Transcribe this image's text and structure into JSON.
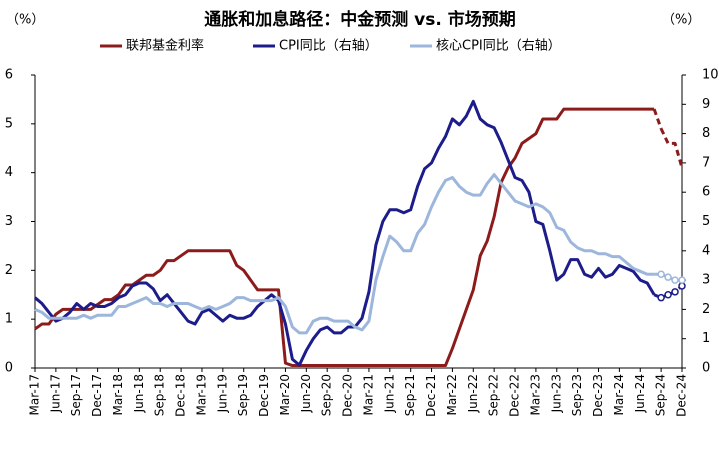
{
  "chart_data": {
    "type": "line",
    "title": "通胀和加息路径：中金预测 vs. 市场预期",
    "y_unit": "（%）",
    "y2_unit": "（%）",
    "categories": [
      "Mar-17",
      null,
      null,
      "Jun-17",
      null,
      null,
      "Sep-17",
      null,
      null,
      "Dec-17",
      null,
      null,
      "Mar-18",
      null,
      null,
      "Jun-18",
      null,
      null,
      "Sep-18",
      null,
      null,
      "Dec-18",
      null,
      null,
      "Mar-19",
      null,
      null,
      "Jun-19",
      null,
      null,
      "Sep-19",
      null,
      null,
      "Dec-19",
      null,
      null,
      "Mar-20",
      null,
      null,
      "Jun-20",
      null,
      null,
      "Sep-20",
      null,
      null,
      "Dec-20",
      null,
      null,
      "Mar-21",
      null,
      null,
      "Jun-21",
      null,
      null,
      "Sep-21",
      null,
      null,
      "Dec-21",
      null,
      null,
      "Mar-22",
      null,
      null,
      "Jun-22",
      null,
      null,
      "Sep-22",
      null,
      null,
      "Dec-22",
      null,
      null,
      "Mar-23",
      null,
      null,
      "Jun-23",
      null,
      null,
      "Sep-23",
      null,
      null,
      "Dec-23",
      null,
      null,
      "Mar-24",
      null,
      null,
      "Jun-24",
      null,
      null,
      "Sep-24",
      null,
      null,
      "Dec-24"
    ],
    "projection_start": "Sep-24",
    "series": [
      {
        "name": "联邦基金利率",
        "color": "#8c1c1c",
        "axis": "y",
        "values": [
          0.8,
          0.9,
          0.9,
          1.1,
          1.2,
          1.2,
          1.2,
          1.2,
          1.2,
          1.3,
          1.4,
          1.4,
          1.5,
          1.7,
          1.7,
          1.8,
          1.9,
          1.9,
          2.0,
          2.2,
          2.2,
          2.3,
          2.4,
          2.4,
          2.4,
          2.4,
          2.4,
          2.4,
          2.4,
          2.1,
          2.0,
          1.8,
          1.6,
          1.6,
          1.6,
          1.6,
          0.1,
          0.05,
          0.05,
          0.05,
          0.05,
          0.05,
          0.05,
          0.05,
          0.05,
          0.05,
          0.05,
          0.05,
          0.05,
          0.05,
          0.05,
          0.05,
          0.05,
          0.05,
          0.05,
          0.05,
          0.05,
          0.05,
          0.05,
          0.05,
          0.4,
          0.8,
          1.2,
          1.6,
          2.3,
          2.6,
          3.1,
          3.8,
          4.1,
          4.3,
          4.6,
          4.7,
          4.8,
          5.1,
          5.1,
          5.1,
          5.3,
          5.3,
          5.3,
          5.3,
          5.3,
          5.3,
          5.3,
          5.3,
          5.3,
          5.3,
          5.3,
          5.3,
          5.3,
          5.3,
          4.9,
          4.6,
          4.6,
          4.1
        ]
      },
      {
        "name": "CPI同比（右轴）",
        "color": "#1c1c8a",
        "axis": "y2",
        "values": [
          2.4,
          2.2,
          1.9,
          1.6,
          1.7,
          1.9,
          2.2,
          2.0,
          2.2,
          2.1,
          2.1,
          2.2,
          2.4,
          2.5,
          2.8,
          2.9,
          2.9,
          2.7,
          2.3,
          2.5,
          2.2,
          1.9,
          1.6,
          1.5,
          1.9,
          2.0,
          1.8,
          1.6,
          1.8,
          1.7,
          1.7,
          1.8,
          2.1,
          2.3,
          2.5,
          2.3,
          1.5,
          0.3,
          0.1,
          0.6,
          1.0,
          1.3,
          1.4,
          1.2,
          1.2,
          1.4,
          1.4,
          1.7,
          2.6,
          4.2,
          5.0,
          5.4,
          5.4,
          5.3,
          5.4,
          6.2,
          6.8,
          7.0,
          7.5,
          7.9,
          8.5,
          8.3,
          8.6,
          9.1,
          8.5,
          8.3,
          8.2,
          7.7,
          7.1,
          6.5,
          6.4,
          6.0,
          5.0,
          4.9,
          4.0,
          3.0,
          3.2,
          3.7,
          3.7,
          3.2,
          3.1,
          3.4,
          3.1,
          3.2,
          3.5,
          3.4,
          3.3,
          3.0,
          2.9,
          2.5,
          2.4,
          2.5,
          2.6,
          2.8
        ]
      },
      {
        "name": "核心CPI同比（右轴）",
        "color": "#9db6dc",
        "axis": "y2",
        "values": [
          2.0,
          1.9,
          1.7,
          1.7,
          1.7,
          1.7,
          1.7,
          1.8,
          1.7,
          1.8,
          1.8,
          1.8,
          2.1,
          2.1,
          2.2,
          2.3,
          2.4,
          2.2,
          2.2,
          2.1,
          2.2,
          2.2,
          2.2,
          2.1,
          2.0,
          2.1,
          2.0,
          2.1,
          2.2,
          2.4,
          2.4,
          2.3,
          2.3,
          2.3,
          2.3,
          2.4,
          2.1,
          1.4,
          1.2,
          1.2,
          1.6,
          1.7,
          1.7,
          1.6,
          1.6,
          1.6,
          1.4,
          1.3,
          1.6,
          3.0,
          3.8,
          4.5,
          4.3,
          4.0,
          4.0,
          4.6,
          4.9,
          5.5,
          6.0,
          6.4,
          6.5,
          6.2,
          6.0,
          5.9,
          5.9,
          6.3,
          6.6,
          6.3,
          6.0,
          5.7,
          5.6,
          5.5,
          5.6,
          5.5,
          5.3,
          4.8,
          4.7,
          4.3,
          4.1,
          4.0,
          4.0,
          3.9,
          3.9,
          3.8,
          3.8,
          3.6,
          3.4,
          3.3,
          3.2,
          3.2,
          3.2,
          3.1,
          3.0,
          3.0
        ]
      }
    ],
    "ylim": [
      0,
      6
    ],
    "yticks": [
      0,
      1,
      2,
      3,
      4,
      5,
      6
    ],
    "y2lim": [
      0,
      10
    ],
    "y2ticks": [
      0,
      1,
      2,
      3,
      4,
      5,
      6,
      7,
      8,
      9,
      10
    ],
    "grid": false
  }
}
